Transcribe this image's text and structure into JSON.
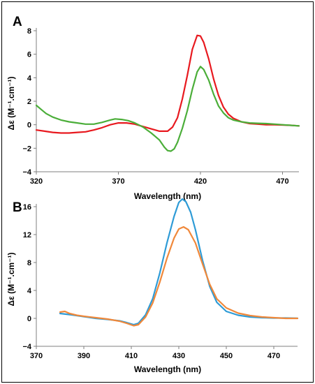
{
  "chart_data": [
    {
      "type": "line",
      "panel_label": "A",
      "xlabel": "Wavelength (nm)",
      "ylabel": "Δε (M⁻¹.cm⁻¹)",
      "xlim": [
        320,
        480
      ],
      "ylim": [
        -4,
        8
      ],
      "xticks": [
        320,
        370,
        420,
        470
      ],
      "yticks": [
        -4,
        -2,
        0,
        2,
        4,
        6,
        8
      ],
      "grid": false,
      "legend": "none",
      "series": [
        {
          "color": "#e8191f",
          "points": [
            [
              320,
              -0.45
            ],
            [
              325,
              -0.55
            ],
            [
              330,
              -0.65
            ],
            [
              335,
              -0.7
            ],
            [
              340,
              -0.7
            ],
            [
              345,
              -0.65
            ],
            [
              350,
              -0.6
            ],
            [
              355,
              -0.45
            ],
            [
              360,
              -0.25
            ],
            [
              365,
              0.0
            ],
            [
              370,
              0.15
            ],
            [
              375,
              0.15
            ],
            [
              380,
              0.05
            ],
            [
              385,
              -0.15
            ],
            [
              390,
              -0.35
            ],
            [
              395,
              -0.55
            ],
            [
              400,
              -0.55
            ],
            [
              403,
              -0.2
            ],
            [
              406,
              0.6
            ],
            [
              409,
              2.2
            ],
            [
              412,
              4.2
            ],
            [
              415,
              6.4
            ],
            [
              418,
              7.6
            ],
            [
              420,
              7.55
            ],
            [
              422,
              7.0
            ],
            [
              425,
              5.6
            ],
            [
              428,
              3.9
            ],
            [
              431,
              2.5
            ],
            [
              434,
              1.5
            ],
            [
              437,
              0.9
            ],
            [
              440,
              0.55
            ],
            [
              445,
              0.25
            ],
            [
              450,
              0.1
            ],
            [
              455,
              0.05
            ],
            [
              460,
              0.0
            ],
            [
              465,
              0.0
            ],
            [
              470,
              -0.02
            ],
            [
              475,
              -0.05
            ],
            [
              480,
              -0.1
            ]
          ]
        },
        {
          "color": "#4bae39",
          "points": [
            [
              320,
              1.65
            ],
            [
              323,
              1.3
            ],
            [
              326,
              0.95
            ],
            [
              330,
              0.65
            ],
            [
              335,
              0.4
            ],
            [
              340,
              0.25
            ],
            [
              345,
              0.15
            ],
            [
              350,
              0.05
            ],
            [
              355,
              0.05
            ],
            [
              360,
              0.2
            ],
            [
              365,
              0.4
            ],
            [
              368,
              0.5
            ],
            [
              372,
              0.45
            ],
            [
              376,
              0.35
            ],
            [
              380,
              0.15
            ],
            [
              385,
              -0.2
            ],
            [
              390,
              -0.7
            ],
            [
              395,
              -1.3
            ],
            [
              398,
              -1.9
            ],
            [
              400,
              -2.2
            ],
            [
              402,
              -2.25
            ],
            [
              404,
              -2.05
            ],
            [
              406,
              -1.5
            ],
            [
              409,
              -0.3
            ],
            [
              412,
              1.2
            ],
            [
              415,
              3.0
            ],
            [
              418,
              4.5
            ],
            [
              420,
              4.95
            ],
            [
              422,
              4.7
            ],
            [
              425,
              3.8
            ],
            [
              428,
              2.6
            ],
            [
              431,
              1.6
            ],
            [
              434,
              1.0
            ],
            [
              437,
              0.6
            ],
            [
              440,
              0.4
            ],
            [
              445,
              0.25
            ],
            [
              450,
              0.15
            ],
            [
              455,
              0.12
            ],
            [
              460,
              0.1
            ],
            [
              465,
              0.05
            ],
            [
              470,
              0.0
            ],
            [
              475,
              -0.05
            ],
            [
              480,
              -0.1
            ]
          ]
        }
      ]
    },
    {
      "type": "line",
      "panel_label": "B",
      "xlabel": "Wavelength (nm)",
      "ylabel": "Δε (M⁻¹.cm⁻¹)",
      "xlim": [
        370,
        480
      ],
      "ylim": [
        -4,
        16
      ],
      "xticks": [
        370,
        390,
        410,
        430,
        450,
        470
      ],
      "yticks": [
        -4,
        0,
        4,
        8,
        12,
        16
      ],
      "grid": false,
      "legend": "none",
      "series": [
        {
          "color": "#2e9bd6",
          "points": [
            [
              380,
              0.7
            ],
            [
              385,
              0.5
            ],
            [
              390,
              0.25
            ],
            [
              395,
              0.0
            ],
            [
              400,
              -0.15
            ],
            [
              405,
              -0.35
            ],
            [
              408,
              -0.6
            ],
            [
              411,
              -0.9
            ],
            [
              413,
              -0.7
            ],
            [
              416,
              0.5
            ],
            [
              419,
              2.8
            ],
            [
              422,
              6.5
            ],
            [
              425,
              10.8
            ],
            [
              428,
              14.6
            ],
            [
              430,
              16.6
            ],
            [
              431.5,
              17.1
            ],
            [
              433,
              16.7
            ],
            [
              435,
              15.2
            ],
            [
              437,
              12.7
            ],
            [
              440,
              8.3
            ],
            [
              443,
              4.6
            ],
            [
              446,
              2.3
            ],
            [
              450,
              1.0
            ],
            [
              455,
              0.45
            ],
            [
              460,
              0.2
            ],
            [
              465,
              0.1
            ],
            [
              470,
              0.05
            ],
            [
              475,
              0.05
            ],
            [
              480,
              0.02
            ]
          ]
        },
        {
          "color": "#f0883a",
          "points": [
            [
              380,
              0.9
            ],
            [
              382,
              1.0
            ],
            [
              384,
              0.7
            ],
            [
              387,
              0.45
            ],
            [
              390,
              0.3
            ],
            [
              395,
              0.1
            ],
            [
              400,
              -0.1
            ],
            [
              405,
              -0.4
            ],
            [
              408,
              -0.7
            ],
            [
              411,
              -1.05
            ],
            [
              413,
              -0.9
            ],
            [
              416,
              0.2
            ],
            [
              419,
              2.2
            ],
            [
              422,
              5.2
            ],
            [
              425,
              8.6
            ],
            [
              428,
              11.5
            ],
            [
              430,
              12.8
            ],
            [
              432,
              13.1
            ],
            [
              434,
              12.7
            ],
            [
              437,
              10.8
            ],
            [
              440,
              7.8
            ],
            [
              443,
              4.9
            ],
            [
              446,
              2.8
            ],
            [
              450,
              1.5
            ],
            [
              455,
              0.75
            ],
            [
              460,
              0.4
            ],
            [
              465,
              0.2
            ],
            [
              470,
              0.1
            ],
            [
              475,
              0.0
            ],
            [
              480,
              0.0
            ]
          ]
        }
      ]
    }
  ]
}
